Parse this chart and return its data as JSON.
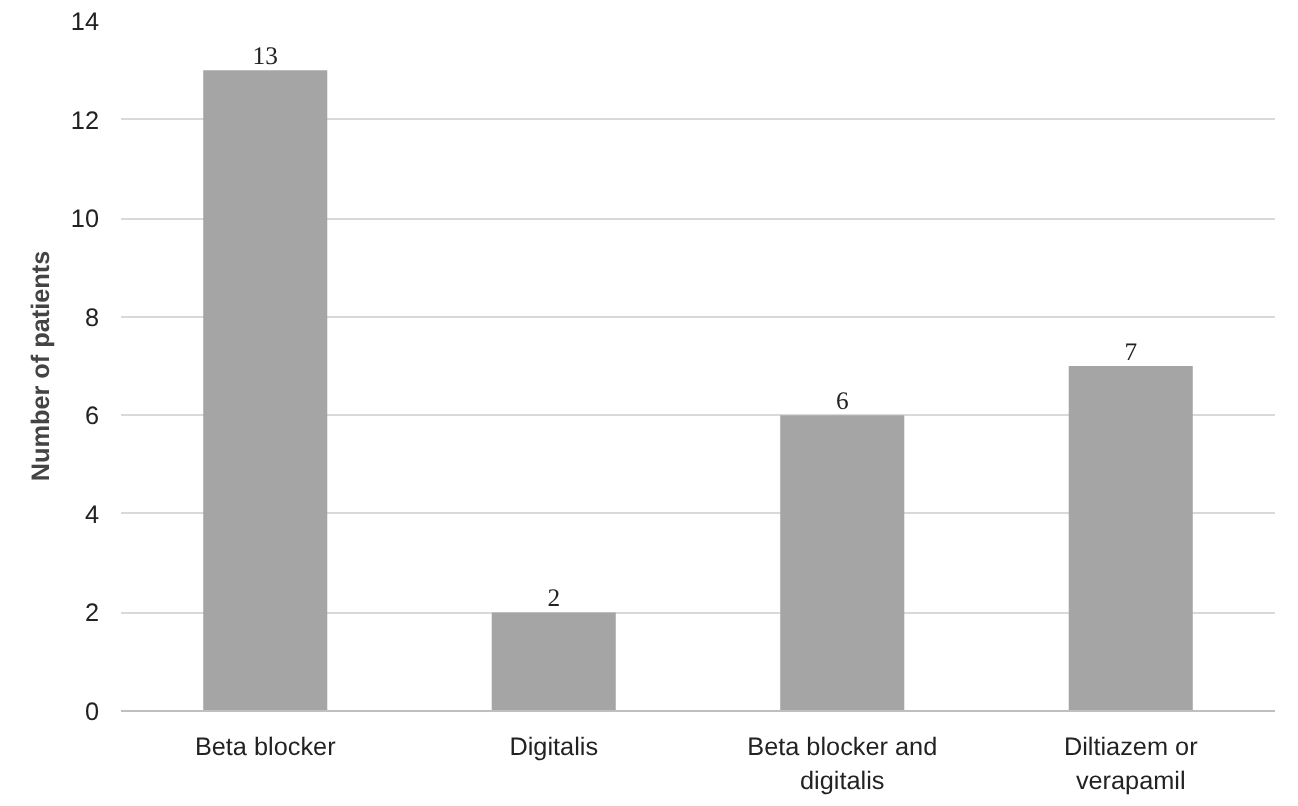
{
  "chart_data": {
    "type": "bar",
    "ylabel": "Number of patients",
    "categories": [
      "Beta blocker",
      "Digitalis",
      "Beta blocker and digitalis",
      "Diltiazem or verapamil"
    ],
    "values": [
      13,
      2,
      6,
      7
    ],
    "color": "#a5a5a5",
    "ylim": [
      0,
      14
    ],
    "yticks": [
      0,
      2,
      4,
      6,
      8,
      10,
      12,
      14
    ],
    "grid": "y",
    "data_labels": true
  }
}
